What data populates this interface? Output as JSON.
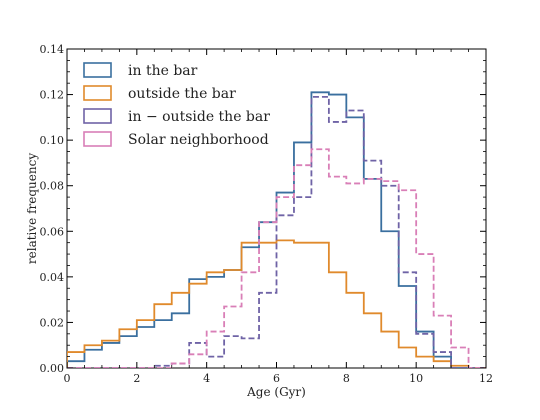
{
  "chart_data": {
    "type": "step",
    "xlabel": "Age (Gyr)",
    "ylabel": "relative frequency",
    "xlim": [
      0,
      12
    ],
    "ylim": [
      0,
      0.14
    ],
    "x_ticks": [
      "0",
      "2",
      "4",
      "6",
      "8",
      "10",
      "12"
    ],
    "y_ticks": [
      "0.00",
      "0.02",
      "0.04",
      "0.06",
      "0.08",
      "0.10",
      "0.12",
      "0.14"
    ],
    "legend_placement": "top-left",
    "bin_edges": [
      0,
      0.5,
      1,
      1.5,
      2,
      2.5,
      3,
      3.5,
      4,
      4.5,
      5,
      5.5,
      6,
      6.5,
      7,
      7.5,
      8,
      8.5,
      9,
      9.5,
      10,
      10.5,
      11,
      11.5,
      12
    ],
    "series": [
      {
        "name": "in the bar",
        "color": "#3a6f9f",
        "style": "solid",
        "values": [
          0.003,
          0.008,
          0.011,
          0.014,
          0.018,
          0.021,
          0.024,
          0.039,
          0.04,
          0.043,
          0.053,
          0.064,
          0.077,
          0.099,
          0.121,
          0.12,
          0.11,
          0.083,
          0.06,
          0.036,
          0.016,
          0.005,
          0.0,
          0.0
        ]
      },
      {
        "name": "outside the bar",
        "color": "#e08a2c",
        "style": "solid",
        "values": [
          0.007,
          0.01,
          0.012,
          0.017,
          0.021,
          0.028,
          0.033,
          0.037,
          0.042,
          0.043,
          0.055,
          0.055,
          0.056,
          0.055,
          0.055,
          0.042,
          0.033,
          0.024,
          0.016,
          0.009,
          0.005,
          0.003,
          0.001,
          0.0
        ]
      },
      {
        "name": "in − outside the bar",
        "color": "#6f63a6",
        "style": "dashed",
        "values": [
          0.0,
          0.0,
          0.0,
          0.0,
          0.0,
          0.001,
          0.002,
          0.011,
          0.005,
          0.014,
          0.013,
          0.033,
          0.067,
          0.075,
          0.119,
          0.108,
          0.113,
          0.091,
          0.08,
          0.042,
          0.015,
          0.007,
          0.0,
          0.0
        ]
      },
      {
        "name": "Solar neighborhood",
        "color": "#d97fb7",
        "style": "dashed",
        "values": [
          0.0,
          0.0,
          0.0,
          0.0,
          0.0,
          0.0,
          0.002,
          0.006,
          0.016,
          0.027,
          0.042,
          0.064,
          0.075,
          0.089,
          0.096,
          0.084,
          0.081,
          0.083,
          0.082,
          0.078,
          0.05,
          0.023,
          0.009,
          0.0
        ]
      }
    ]
  }
}
